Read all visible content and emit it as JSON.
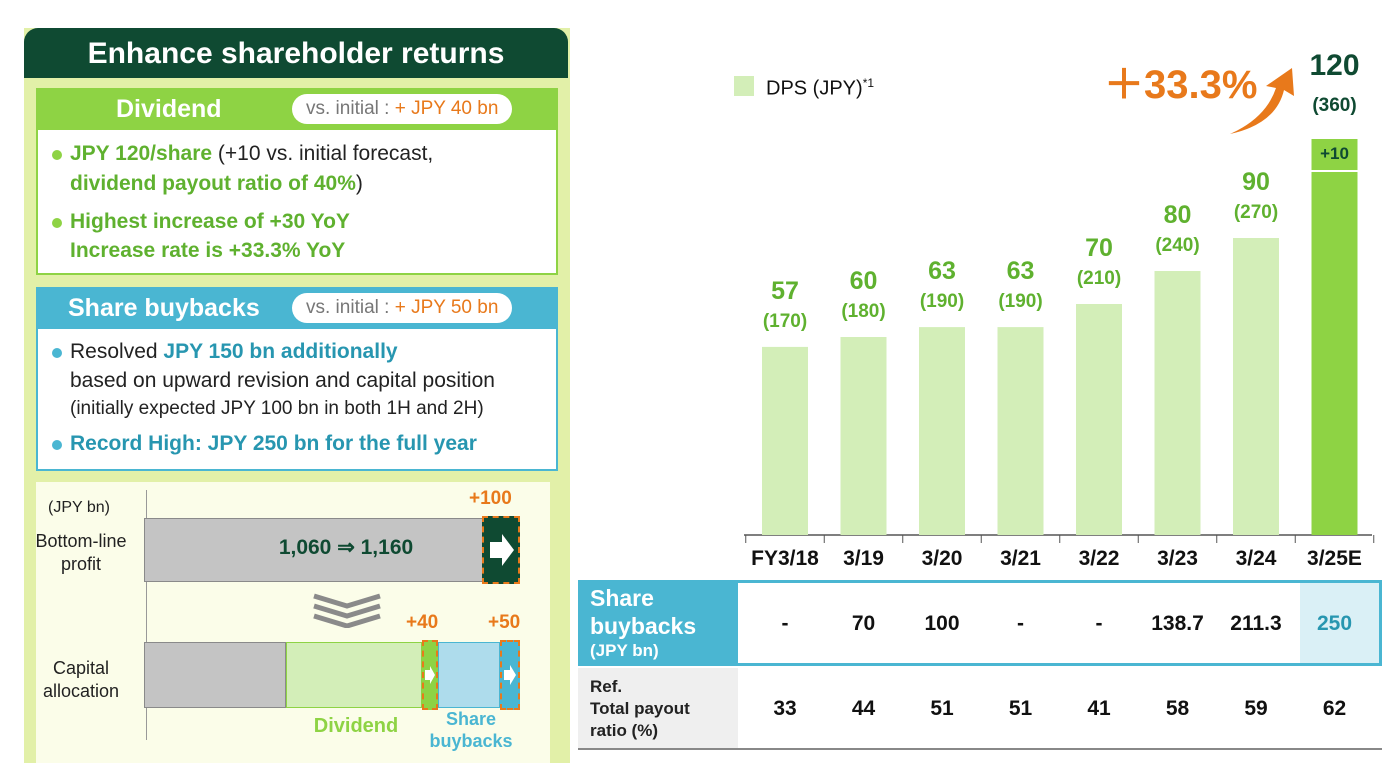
{
  "left": {
    "title": "Enhance shareholder returns",
    "dividend": {
      "heading": "Dividend",
      "tag_prefix": "vs. initial :",
      "tag_value": "+ JPY 40 bn",
      "b1_hl": "JPY 120/share",
      "b1_rest": " (+10 vs. initial forecast,",
      "b1_line2": "dividend payout ratio of 40%",
      "b1_line2_end": ")",
      "b2_line1": "Highest increase of +30 YoY",
      "b2_line2": "Increase rate is +33.3% YoY"
    },
    "buybacks": {
      "heading": "Share buybacks",
      "tag_prefix": "vs. initial :",
      "tag_value": "+ JPY 50 bn",
      "b1_pre": "Resolved ",
      "b1_hl": "JPY 150 bn additionally",
      "b1_line2": "based on upward revision and capital position",
      "b1_line3": "(initially expected JPY 100 bn in both 1H and 2H)",
      "b2": "Record High: JPY 250 bn for the full year"
    },
    "mini": {
      "unit": "(JPY bn)",
      "row1_label_1": "Bottom-line",
      "row1_label_2": "profit",
      "row1_value": "1,060 ⇒ 1,160",
      "row1_delta": "+100",
      "row2_label_1": "Capital",
      "row2_label_2": "allocation",
      "row2_delta_div": "+40",
      "row2_delta_sb": "+50",
      "legend_div": "Dividend",
      "legend_sb_1": "Share",
      "legend_sb_2": "buybacks"
    }
  },
  "chart_data": {
    "type": "bar",
    "legend": "DPS (JPY)",
    "legend_note": "*1",
    "categories": [
      "FY3/18",
      "3/19",
      "3/20",
      "3/21",
      "3/22",
      "3/23",
      "3/24",
      "3/25E"
    ],
    "values": [
      57,
      60,
      63,
      63,
      70,
      80,
      90,
      120
    ],
    "sub_values": [
      "(170)",
      "(180)",
      "(190)",
      "(190)",
      "(210)",
      "(240)",
      "(270)",
      "(360)"
    ],
    "increment_label": "+10",
    "increase_label": "＋33.3%",
    "colors": {
      "bar": "#d3eeb8",
      "highlight": "#8ed344",
      "text": "#5fb12f",
      "dark": "#0f4a32",
      "arrow": "#e8791b"
    }
  },
  "table": {
    "head_1": "Share",
    "head_2": "buybacks",
    "head_unit": "(JPY bn)",
    "buybacks": [
      "-",
      "70",
      "100",
      "-",
      "-",
      "138.7",
      "211.3",
      "250"
    ],
    "ref_1": "Ref.",
    "ref_2": "Total payout",
    "ref_3": "ratio (%)",
    "payout": [
      "33",
      "44",
      "51",
      "51",
      "41",
      "58",
      "59",
      "62"
    ]
  }
}
